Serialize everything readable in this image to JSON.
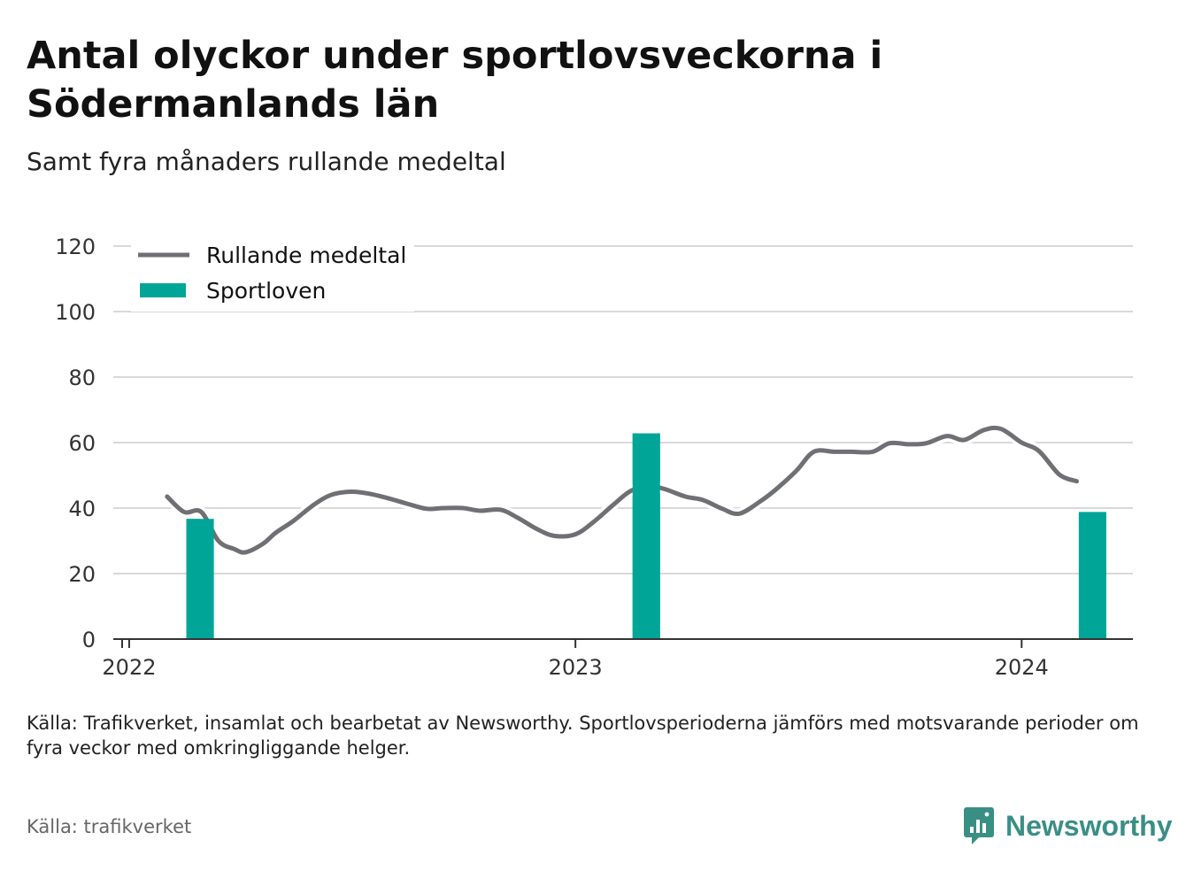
{
  "header": {
    "title": "Antal olyckor under sportlovsveckorna i Södermanlands län",
    "subtitle": "Samt fyra månaders rullande medeltal"
  },
  "footer": {
    "caption": "Källa: Trafikverket, insamlat och bearbetat av Newsworthy. Sportlovsperioderna jämförs med motsvarande perioder om fyra veckor med omkringliggande helger.",
    "source": "Källa: trafikverket",
    "brand": "Newsworthy",
    "brand_icon": "chart-bubble-icon"
  },
  "colors": {
    "line": "#6f7074",
    "bar": "#00a598",
    "grid": "#d9d9d9",
    "axis": "#333333",
    "brand": "#3a8f85"
  },
  "chart_data": {
    "type": "bar+line",
    "title": "Antal olyckor under sportlovsveckorna i Södermanlands län",
    "subtitle": "Samt fyra månaders rullande medeltal",
    "xlabel": "",
    "ylabel": "",
    "ylim": [
      0,
      120
    ],
    "yticks": [
      0,
      20,
      40,
      60,
      80,
      100,
      120
    ],
    "xlim": [
      "2021-12-19",
      "2024-04-01"
    ],
    "xticks": [
      {
        "date": "2022-01-01",
        "label": "2022"
      },
      {
        "date": "2023-01-01",
        "label": "2023"
      },
      {
        "date": "2024-01-01",
        "label": "2024"
      }
    ],
    "grid": true,
    "legend": {
      "position": "top-left",
      "entries": [
        "Rullande medeltal",
        "Sportloven"
      ]
    },
    "series": [
      {
        "name": "Rullande medeltal",
        "type": "line",
        "points": [
          {
            "x": "2022-02-01",
            "y": 43.5
          },
          {
            "x": "2022-02-15",
            "y": 38.8
          },
          {
            "x": "2022-03-01",
            "y": 38.8
          },
          {
            "x": "2022-03-15",
            "y": 30
          },
          {
            "x": "2022-03-28",
            "y": 27.5
          },
          {
            "x": "2022-04-06",
            "y": 26.5
          },
          {
            "x": "2022-04-20",
            "y": 29
          },
          {
            "x": "2022-05-01",
            "y": 32.5
          },
          {
            "x": "2022-05-15",
            "y": 36
          },
          {
            "x": "2022-06-01",
            "y": 41
          },
          {
            "x": "2022-06-15",
            "y": 44
          },
          {
            "x": "2022-07-01",
            "y": 45
          },
          {
            "x": "2022-07-15",
            "y": 44.5
          },
          {
            "x": "2022-08-01",
            "y": 43
          },
          {
            "x": "2022-08-15",
            "y": 41.5
          },
          {
            "x": "2022-09-01",
            "y": 39.8
          },
          {
            "x": "2022-09-15",
            "y": 40
          },
          {
            "x": "2022-10-01",
            "y": 40
          },
          {
            "x": "2022-10-15",
            "y": 39.2
          },
          {
            "x": "2022-11-01",
            "y": 39.5
          },
          {
            "x": "2022-11-15",
            "y": 37
          },
          {
            "x": "2022-12-01",
            "y": 33.5
          },
          {
            "x": "2022-12-15",
            "y": 31.5
          },
          {
            "x": "2023-01-01",
            "y": 32
          },
          {
            "x": "2023-01-15",
            "y": 35.5
          },
          {
            "x": "2023-02-01",
            "y": 41
          },
          {
            "x": "2023-02-15",
            "y": 45.2
          },
          {
            "x": "2023-03-01",
            "y": 46.8
          },
          {
            "x": "2023-03-15",
            "y": 45.8
          },
          {
            "x": "2023-04-01",
            "y": 43.5
          },
          {
            "x": "2023-04-15",
            "y": 42.5
          },
          {
            "x": "2023-05-01",
            "y": 39.8
          },
          {
            "x": "2023-05-15",
            "y": 38.3
          },
          {
            "x": "2023-06-01",
            "y": 42
          },
          {
            "x": "2023-06-15",
            "y": 46
          },
          {
            "x": "2023-07-01",
            "y": 51.5
          },
          {
            "x": "2023-07-15",
            "y": 57.2
          },
          {
            "x": "2023-08-01",
            "y": 57.2
          },
          {
            "x": "2023-08-15",
            "y": 57.2
          },
          {
            "x": "2023-09-01",
            "y": 57.2
          },
          {
            "x": "2023-09-15",
            "y": 59.8
          },
          {
            "x": "2023-10-01",
            "y": 59.5
          },
          {
            "x": "2023-10-15",
            "y": 59.8
          },
          {
            "x": "2023-11-01",
            "y": 62
          },
          {
            "x": "2023-11-15",
            "y": 60.8
          },
          {
            "x": "2023-12-01",
            "y": 63.8
          },
          {
            "x": "2023-12-15",
            "y": 64.2
          },
          {
            "x": "2024-01-01",
            "y": 60
          },
          {
            "x": "2024-01-15",
            "y": 57.5
          },
          {
            "x": "2024-02-01",
            "y": 50.2
          },
          {
            "x": "2024-02-15",
            "y": 48.2
          }
        ]
      },
      {
        "name": "Sportloven",
        "type": "bar",
        "points": [
          {
            "x": "2022-02-28",
            "y": 36.7
          },
          {
            "x": "2023-02-28",
            "y": 62.8
          },
          {
            "x": "2024-02-28",
            "y": 38.8
          }
        ]
      }
    ]
  }
}
